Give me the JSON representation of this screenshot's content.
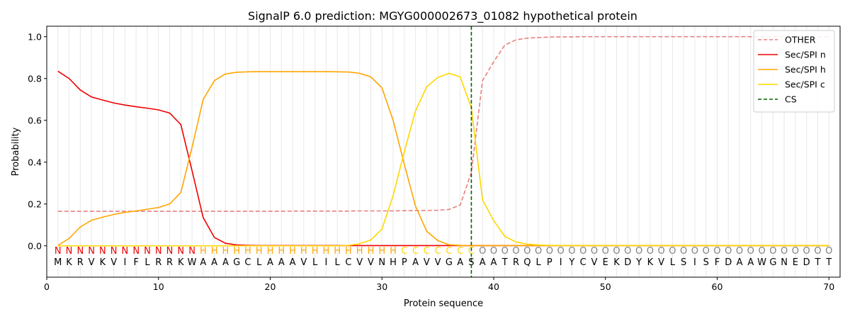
{
  "chart_data": {
    "type": "line",
    "title": "SignalP 6.0 prediction: MGYG000002673_01082 hypothetical protein",
    "xlabel": "Protein sequence",
    "ylabel": "Probability",
    "xlim": [
      0,
      71
    ],
    "ylim": [
      -0.15,
      1.05
    ],
    "xticks": [
      0,
      10,
      20,
      30,
      40,
      50,
      60,
      70
    ],
    "yticks": [
      0.0,
      0.2,
      0.4,
      0.6,
      0.8,
      1.0
    ],
    "grid": "vertical lines at each residue",
    "legend_position": "top-right",
    "sequence": [
      "M",
      "K",
      "R",
      "V",
      "K",
      "V",
      "I",
      "F",
      "L",
      "R",
      "R",
      "K",
      "W",
      "A",
      "A",
      "A",
      "G",
      "C",
      "L",
      "A",
      "A",
      "A",
      "V",
      "L",
      "I",
      "L",
      "C",
      "V",
      "V",
      "N",
      "H",
      "P",
      "A",
      "V",
      "V",
      "G",
      "A",
      "S",
      "A",
      "A",
      "T",
      "R",
      "Q",
      "L",
      "P",
      "I",
      "Y",
      "C",
      "V",
      "E",
      "K",
      "D",
      "Y",
      "K",
      "V",
      "L",
      "S",
      "I",
      "S",
      "F",
      "D",
      "A",
      "A",
      "W",
      "G",
      "N",
      "E",
      "D",
      "T",
      "T"
    ],
    "annotation": [
      "N",
      "N",
      "N",
      "N",
      "N",
      "N",
      "N",
      "N",
      "N",
      "N",
      "N",
      "N",
      "N",
      "H",
      "H",
      "H",
      "H",
      "H",
      "H",
      "H",
      "H",
      "H",
      "H",
      "H",
      "H",
      "H",
      "H",
      "H",
      "H",
      "H",
      "H",
      "C",
      "C",
      "C",
      "C",
      "C",
      "C",
      "C",
      "O",
      "O",
      "O",
      "O",
      "O",
      "O",
      "O",
      "O",
      "O",
      "O",
      "O",
      "O",
      "O",
      "O",
      "O",
      "O",
      "O",
      "O",
      "O",
      "O",
      "O",
      "O",
      "O",
      "O",
      "O",
      "O",
      "O",
      "O",
      "O",
      "O",
      "O",
      "O"
    ],
    "annotation_colors": {
      "N": "#ee0000",
      "H": "#ffa500",
      "C": "#ffd700",
      "O": "#808080"
    },
    "series": [
      {
        "name": "OTHER",
        "color": "#e88080",
        "dash": "dashed",
        "values": [
          0.165,
          0.165,
          0.165,
          0.165,
          0.165,
          0.165,
          0.165,
          0.165,
          0.165,
          0.165,
          0.165,
          0.165,
          0.165,
          0.165,
          0.165,
          0.165,
          0.165,
          0.165,
          0.165,
          0.165,
          0.165,
          0.166,
          0.166,
          0.166,
          0.166,
          0.166,
          0.166,
          0.167,
          0.167,
          0.167,
          0.167,
          0.168,
          0.168,
          0.169,
          0.17,
          0.174,
          0.195,
          0.35,
          0.79,
          0.88,
          0.96,
          0.985,
          0.993,
          0.996,
          0.998,
          0.999,
          0.999,
          1.0,
          1.0,
          1.0,
          1.0,
          1.0,
          1.0,
          1.0,
          1.0,
          1.0,
          1.0,
          1.0,
          1.0,
          1.0,
          1.0,
          1.0,
          1.0,
          1.0,
          1.0,
          1.0,
          1.0,
          1.0,
          1.0,
          1.0
        ]
      },
      {
        "name": "Sec/SPI n",
        "color": "#ee0000",
        "dash": "solid",
        "values": [
          0.835,
          0.8,
          0.745,
          0.712,
          0.697,
          0.683,
          0.673,
          0.665,
          0.658,
          0.65,
          0.635,
          0.58,
          0.36,
          0.135,
          0.04,
          0.012,
          0.004,
          0.002,
          0.001,
          0.001,
          0.001,
          0.001,
          0.001,
          0.001,
          0.001,
          0.001,
          0.001,
          0.001,
          0.001,
          0.001,
          0.001,
          0.001,
          0.001,
          0.001,
          0.001,
          0.001,
          0.001,
          0.001,
          0.001,
          0.001,
          0.001,
          0.001,
          0.001,
          0.001,
          0.001,
          0.001,
          0.001,
          0.001,
          0.001,
          0.001,
          0.001,
          0.001,
          0.001,
          0.001,
          0.001,
          0.001,
          0.001,
          0.001,
          0.001,
          0.001,
          0.001,
          0.001,
          0.001,
          0.001,
          0.001,
          0.001,
          0.001,
          0.001,
          0.001,
          0.001
        ]
      },
      {
        "name": "Sec/SPI h",
        "color": "#ffa500",
        "dash": "solid",
        "values": [
          0.002,
          0.035,
          0.09,
          0.122,
          0.137,
          0.15,
          0.16,
          0.167,
          0.175,
          0.183,
          0.2,
          0.255,
          0.47,
          0.7,
          0.79,
          0.822,
          0.83,
          0.832,
          0.833,
          0.833,
          0.833,
          0.833,
          0.833,
          0.833,
          0.833,
          0.832,
          0.831,
          0.825,
          0.808,
          0.755,
          0.6,
          0.39,
          0.19,
          0.07,
          0.025,
          0.005,
          0.002,
          0.001,
          0.001,
          0.001,
          0.001,
          0.001,
          0.001,
          0.001,
          0.001,
          0.001,
          0.001,
          0.001,
          0.001,
          0.001,
          0.001,
          0.001,
          0.001,
          0.001,
          0.001,
          0.001,
          0.001,
          0.001,
          0.001,
          0.001,
          0.001,
          0.001,
          0.001,
          0.001,
          0.001,
          0.001,
          0.001,
          0.001,
          0.001,
          0.001
        ]
      },
      {
        "name": "Sec/SPI c",
        "color": "#ffd700",
        "dash": "solid",
        "values": [
          0.0,
          0.0,
          0.0,
          0.0,
          0.0,
          0.0,
          0.0,
          0.0,
          0.0,
          0.0,
          0.0,
          0.0,
          0.0,
          0.0,
          0.0,
          0.0,
          0.0,
          0.0,
          0.0,
          0.0,
          0.0,
          0.0,
          0.0,
          0.0,
          0.0,
          0.0,
          0.002,
          0.01,
          0.028,
          0.08,
          0.24,
          0.45,
          0.645,
          0.76,
          0.805,
          0.825,
          0.808,
          0.66,
          0.22,
          0.12,
          0.045,
          0.018,
          0.008,
          0.004,
          0.002,
          0.001,
          0.001,
          0.001,
          0.001,
          0.001,
          0.001,
          0.001,
          0.001,
          0.001,
          0.001,
          0.001,
          0.001,
          0.001,
          0.001,
          0.001,
          0.001,
          0.001,
          0.001,
          0.001,
          0.001,
          0.001,
          0.001,
          0.001,
          0.001,
          0.001
        ]
      }
    ],
    "cs": {
      "name": "CS",
      "x": 38,
      "color": "#006400"
    }
  }
}
